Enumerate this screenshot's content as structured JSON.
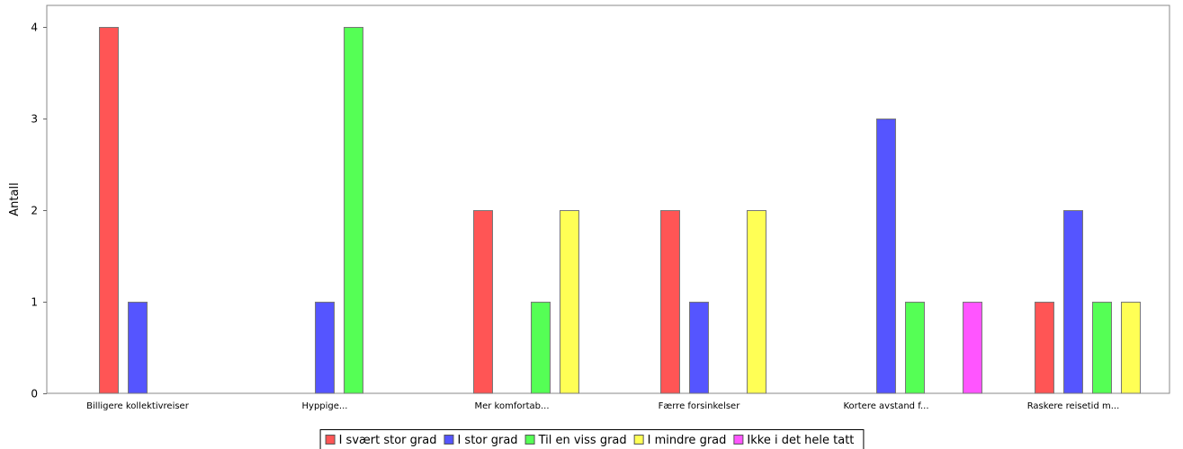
{
  "chart_data": {
    "type": "bar",
    "title": "",
    "xlabel": "",
    "ylabel": "Antall",
    "ylim": [
      0,
      4
    ],
    "yticks": [
      0,
      1,
      2,
      3,
      4
    ],
    "grid": true,
    "legend_position": "bottom",
    "categories": [
      "Billigere kollektivreiser",
      "Hyppige...",
      "Mer komfortab...",
      "Færre forsinkelser",
      "Kortere avstand f...",
      "Raskere reisetid m..."
    ],
    "series": [
      {
        "name": "I svært stor grad",
        "color": "#ff5555",
        "values": [
          4,
          0,
          2,
          2,
          0,
          1
        ]
      },
      {
        "name": "I stor grad",
        "color": "#5555ff",
        "values": [
          1,
          1,
          0,
          1,
          3,
          2
        ]
      },
      {
        "name": "Til en viss grad",
        "color": "#55ff55",
        "values": [
          0,
          4,
          1,
          0,
          1,
          1
        ]
      },
      {
        "name": "I mindre grad",
        "color": "#ffff55",
        "values": [
          0,
          0,
          2,
          2,
          0,
          1
        ]
      },
      {
        "name": "Ikke i det hele tatt",
        "color": "#ff55ff",
        "values": [
          0,
          0,
          0,
          0,
          1,
          0
        ]
      }
    ]
  }
}
